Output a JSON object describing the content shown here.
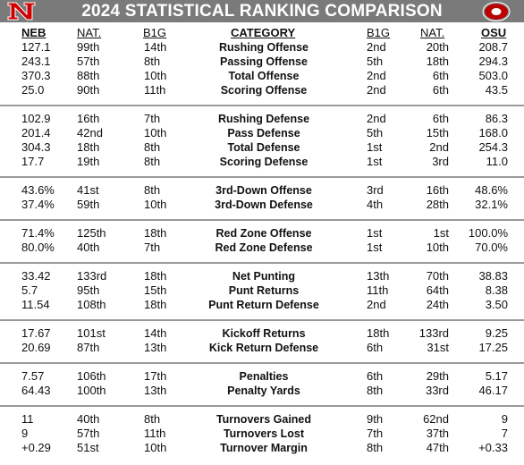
{
  "header": {
    "title": "2024 STATISTICAL RANKING COMPARISON"
  },
  "columns": {
    "neb": "NEB",
    "neb_nat": "NAT.",
    "neb_b1g": "B1G",
    "category": "CATEGORY",
    "osu_b1g": "B1G",
    "osu_nat": "NAT.",
    "osu": "OSU"
  },
  "colors": {
    "header_bg": "#7a7a7a",
    "nebraska_red": "#d00000",
    "ohio_state_scarlet": "#bb0000",
    "divider": "#9a9a9a"
  },
  "icons": {
    "left_logo": "nebraska-n-logo",
    "right_logo": "ohio-state-block-o-logo"
  },
  "groups": [
    {
      "rows": [
        {
          "neb": "127.1",
          "neb_nat": "99th",
          "neb_b1g": "14th",
          "category": "Rushing Offense",
          "osu_b1g": "2nd",
          "osu_nat": "20th",
          "osu": "208.7"
        },
        {
          "neb": "243.1",
          "neb_nat": "57th",
          "neb_b1g": "8th",
          "category": "Passing Offense",
          "osu_b1g": "5th",
          "osu_nat": "18th",
          "osu": "294.3"
        },
        {
          "neb": "370.3",
          "neb_nat": "88th",
          "neb_b1g": "10th",
          "category": "Total Offense",
          "osu_b1g": "2nd",
          "osu_nat": "6th",
          "osu": "503.0"
        },
        {
          "neb": "25.0",
          "neb_nat": "90th",
          "neb_b1g": "11th",
          "category": "Scoring Offense",
          "osu_b1g": "2nd",
          "osu_nat": "6th",
          "osu": "43.5"
        }
      ]
    },
    {
      "rows": [
        {
          "neb": "102.9",
          "neb_nat": "16th",
          "neb_b1g": "7th",
          "category": "Rushing Defense",
          "osu_b1g": "2nd",
          "osu_nat": "6th",
          "osu": "86.3"
        },
        {
          "neb": "201.4",
          "neb_nat": "42nd",
          "neb_b1g": "10th",
          "category": "Pass Defense",
          "osu_b1g": "5th",
          "osu_nat": "15th",
          "osu": "168.0"
        },
        {
          "neb": "304.3",
          "neb_nat": "18th",
          "neb_b1g": "8th",
          "category": "Total Defense",
          "osu_b1g": "1st",
          "osu_nat": "2nd",
          "osu": "254.3"
        },
        {
          "neb": "17.7",
          "neb_nat": "19th",
          "neb_b1g": "8th",
          "category": "Scoring Defense",
          "osu_b1g": "1st",
          "osu_nat": "3rd",
          "osu": "11.0"
        }
      ]
    },
    {
      "rows": [
        {
          "neb": "43.6%",
          "neb_nat": "41st",
          "neb_b1g": "8th",
          "category": "3rd-Down Offense",
          "osu_b1g": "3rd",
          "osu_nat": "16th",
          "osu": "48.6%"
        },
        {
          "neb": "37.4%",
          "neb_nat": "59th",
          "neb_b1g": "10th",
          "category": "3rd-Down Defense",
          "osu_b1g": "4th",
          "osu_nat": "28th",
          "osu": "32.1%"
        }
      ]
    },
    {
      "rows": [
        {
          "neb": "71.4%",
          "neb_nat": "125th",
          "neb_b1g": "18th",
          "category": "Red Zone Offense",
          "osu_b1g": "1st",
          "osu_nat": "1st",
          "osu": "100.0%"
        },
        {
          "neb": "80.0%",
          "neb_nat": "40th",
          "neb_b1g": "7th",
          "category": "Red Zone Defense",
          "osu_b1g": "1st",
          "osu_nat": "10th",
          "osu": "70.0%"
        }
      ]
    },
    {
      "rows": [
        {
          "neb": "33.42",
          "neb_nat": "133rd",
          "neb_b1g": "18th",
          "category": "Net Punting",
          "osu_b1g": "13th",
          "osu_nat": "70th",
          "osu": "38.83"
        },
        {
          "neb": "5.7",
          "neb_nat": "95th",
          "neb_b1g": "15th",
          "category": "Punt Returns",
          "osu_b1g": "11th",
          "osu_nat": "64th",
          "osu": "8.38"
        },
        {
          "neb": "11.54",
          "neb_nat": "108th",
          "neb_b1g": "18th",
          "category": "Punt Return Defense",
          "osu_b1g": "2nd",
          "osu_nat": "24th",
          "osu": "3.50"
        }
      ]
    },
    {
      "rows": [
        {
          "neb": "17.67",
          "neb_nat": "101st",
          "neb_b1g": "14th",
          "category": "Kickoff Returns",
          "osu_b1g": "18th",
          "osu_nat": "133rd",
          "osu": "9.25"
        },
        {
          "neb": "20.69",
          "neb_nat": "87th",
          "neb_b1g": "13th",
          "category": "Kick Return Defense",
          "osu_b1g": "6th",
          "osu_nat": "31st",
          "osu": "17.25"
        }
      ]
    },
    {
      "rows": [
        {
          "neb": "7.57",
          "neb_nat": "106th",
          "neb_b1g": "17th",
          "category": "Penalties",
          "osu_b1g": "6th",
          "osu_nat": "29th",
          "osu": "5.17"
        },
        {
          "neb": "64.43",
          "neb_nat": "100th",
          "neb_b1g": "13th",
          "category": "Penalty Yards",
          "osu_b1g": "8th",
          "osu_nat": "33rd",
          "osu": "46.17"
        }
      ]
    },
    {
      "rows": [
        {
          "neb": "11",
          "neb_nat": "40th",
          "neb_b1g": "8th",
          "category": "Turnovers Gained",
          "osu_b1g": "9th",
          "osu_nat": "62nd",
          "osu": "9"
        },
        {
          "neb": "9",
          "neb_nat": "57th",
          "neb_b1g": "11th",
          "category": "Turnovers Lost",
          "osu_b1g": "7th",
          "osu_nat": "37th",
          "osu": "7"
        },
        {
          "neb": "+0.29",
          "neb_nat": "51st",
          "neb_b1g": "10th",
          "category": "Turnover Margin",
          "osu_b1g": "8th",
          "osu_nat": "47th",
          "osu": "+0.33"
        }
      ]
    }
  ]
}
